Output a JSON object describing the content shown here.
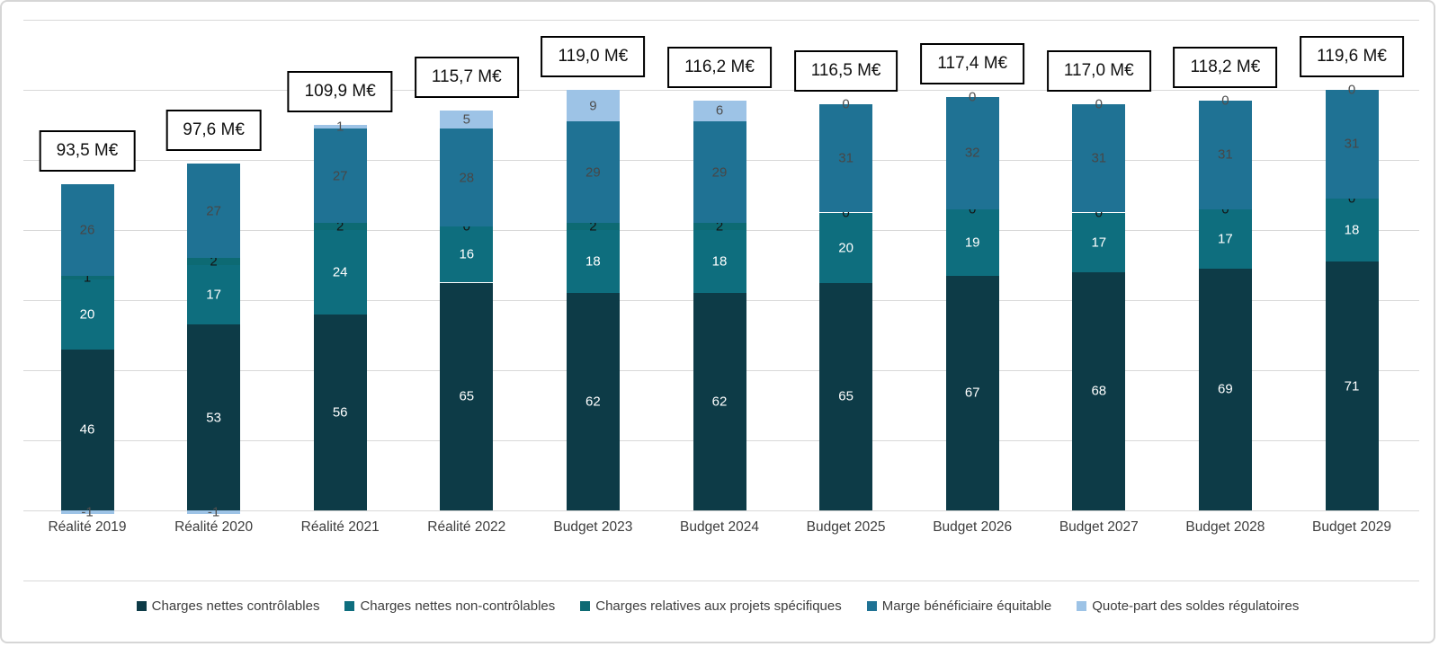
{
  "chart_data": {
    "type": "bar",
    "stacked": true,
    "title": "",
    "xlabel": "",
    "ylabel": "",
    "ylim": [
      -20,
      140
    ],
    "gridline_step": 20,
    "grid": true,
    "legend_position": "bottom",
    "categories": [
      "Réalité 2019",
      "Réalité 2020",
      "Réalité 2021",
      "Réalité 2022",
      "Budget 2023",
      "Budget 2024",
      "Budget 2025",
      "Budget 2026",
      "Budget 2027",
      "Budget 2028",
      "Budget 2029"
    ],
    "totals": [
      "93,5 M€",
      "97,6 M€",
      "109,9 M€",
      "115,7 M€",
      "119,0 M€",
      "116,2 M€",
      "116,5 M€",
      "117,4 M€",
      "117,0 M€",
      "118,2 M€",
      "119,6 M€"
    ],
    "series": [
      {
        "name": "Charges nettes contrôlables",
        "color": "#0d3b47",
        "label_color": "#ffffff",
        "values": [
          46,
          53,
          56,
          65,
          62,
          62,
          65,
          67,
          68,
          69,
          71
        ]
      },
      {
        "name": "Charges nettes non-contrôlables",
        "color": "#0e6e7e",
        "label_color": "#ffffff",
        "values": [
          20,
          17,
          24,
          16,
          18,
          18,
          20,
          19,
          17,
          17,
          18
        ]
      },
      {
        "name": "Charges relatives aux projets spécifiques",
        "color": "#0d6a73",
        "label_color": "#141414",
        "values": [
          1,
          2,
          2,
          0,
          2,
          2,
          0,
          0,
          0,
          0,
          0
        ]
      },
      {
        "name": "Marge bénéficiaire équitable",
        "color": "#1f7294",
        "label_color": "#474747",
        "values": [
          26,
          27,
          27,
          28,
          29,
          29,
          31,
          32,
          31,
          31,
          31
        ]
      },
      {
        "name": "Quote-part des soldes régulatoires",
        "color": "#9dc3e6",
        "label_color": "#4f4f4f",
        "values": [
          -1,
          -1,
          1,
          5,
          9,
          6,
          0,
          0,
          0,
          0,
          0
        ]
      }
    ],
    "colors": {
      "gridline": "#d9d9d9",
      "axis_label": "#3d3d3d",
      "total_box_border": "#000000",
      "total_box_bg": "#ffffff"
    }
  }
}
